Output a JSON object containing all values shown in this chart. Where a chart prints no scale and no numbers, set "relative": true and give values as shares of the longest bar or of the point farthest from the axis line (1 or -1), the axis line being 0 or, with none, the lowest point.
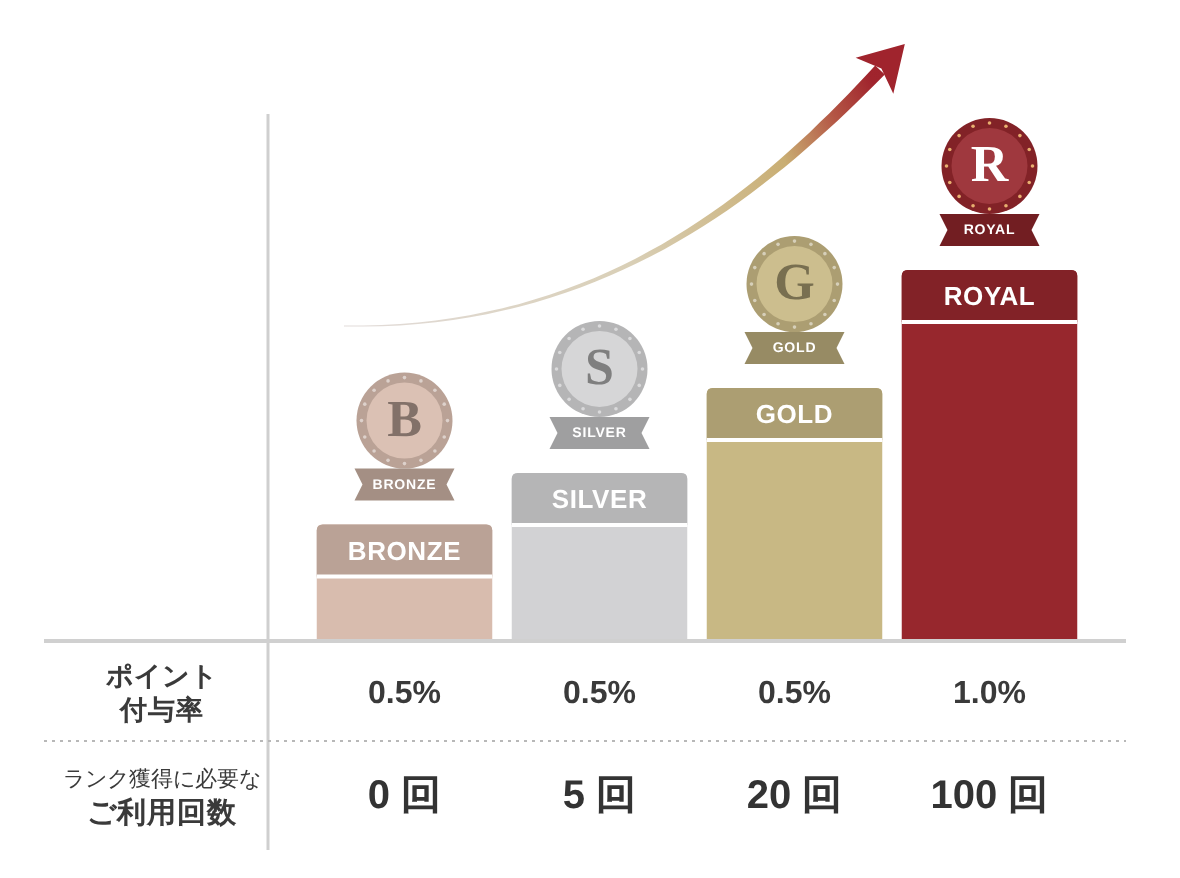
{
  "chart_data": {
    "type": "bar",
    "relative": true,
    "categories": [
      "BRONZE",
      "SILVER",
      "GOLD",
      "ROYAL"
    ],
    "values": [
      0.31,
      0.45,
      0.68,
      1
    ],
    "colors": [
      "#d8bcae",
      "#d2d2d4",
      "#c8b884",
      "#97272d"
    ],
    "annotations": [
      "B",
      "S",
      "G",
      "R",
      "ポイント付与率",
      "0.5%",
      "0.5%",
      "0.5%",
      "1.0%",
      "ランク獲得に必要なご利用回数",
      "0 回",
      "5 回",
      "20 回",
      "100 回"
    ]
  }
}
